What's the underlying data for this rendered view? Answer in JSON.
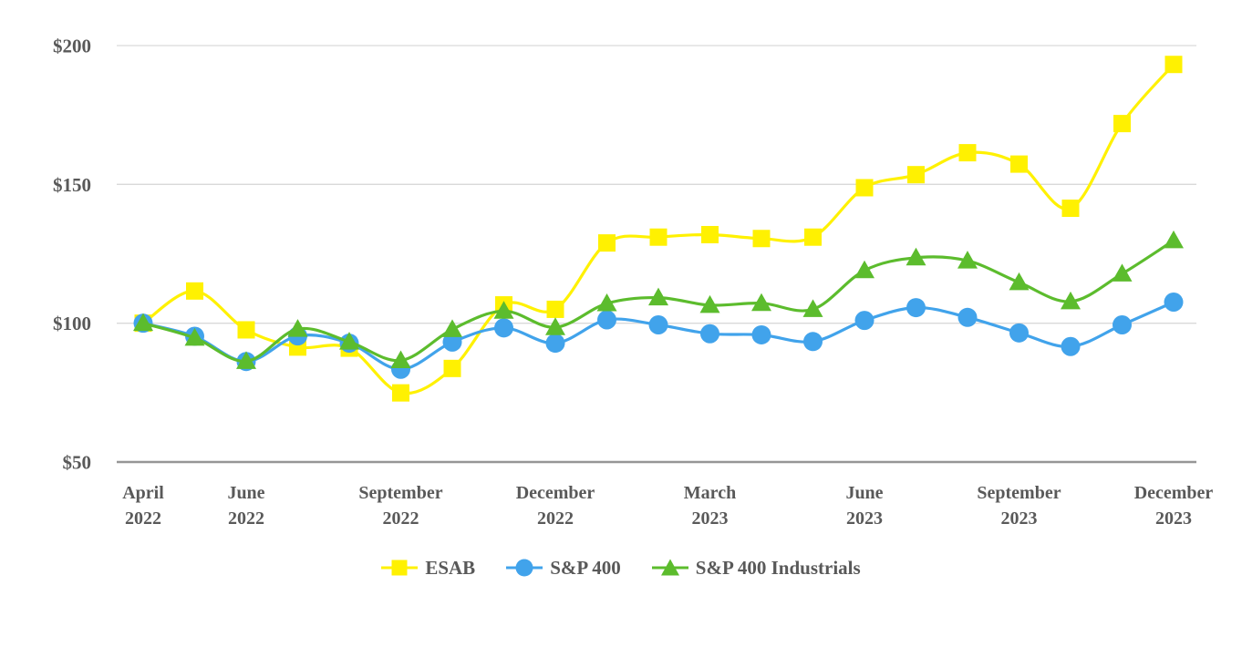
{
  "colors": {
    "background": "#FFFFFF",
    "text": "#595959",
    "gridline": "#D9D9D9",
    "axis_line": "#969696",
    "esab": "#FFF101",
    "sp400": "#41A3EB",
    "sp400_industrials": "#5CBC2D"
  },
  "chart_data": {
    "type": "line",
    "title": "",
    "xlabel": "",
    "ylabel": "",
    "ylim": [
      50,
      200
    ],
    "grid": "horizontal",
    "legend_position": "bottom",
    "line_style": "smooth",
    "x": [
      "April 2022",
      "May 2022",
      "June 2022",
      "July 2022",
      "August 2022",
      "September 2022",
      "October 2022",
      "November 2022",
      "December 2022",
      "January 2023",
      "February 2023",
      "March 2023",
      "April 2023",
      "May 2023",
      "June 2023",
      "July 2023",
      "August 2023",
      "September 2023",
      "October 2023",
      "November 2023",
      "December 2023"
    ],
    "y_ticks": [
      {
        "value": 200,
        "label": "$200"
      },
      {
        "value": 150,
        "label": "$150"
      },
      {
        "value": 100,
        "label": "$100"
      },
      {
        "value": 50,
        "label": "$50"
      }
    ],
    "x_ticks": [
      {
        "index": 0,
        "line1": "April",
        "line2": "2022"
      },
      {
        "index": 2,
        "line1": "June",
        "line2": "2022"
      },
      {
        "index": 5,
        "line1": "September",
        "line2": "2022"
      },
      {
        "index": 8,
        "line1": "December",
        "line2": "2022"
      },
      {
        "index": 11,
        "line1": "March",
        "line2": "2023"
      },
      {
        "index": 14,
        "line1": "June",
        "line2": "2023"
      },
      {
        "index": 17,
        "line1": "September",
        "line2": "2023"
      },
      {
        "index": 20,
        "line1": "December",
        "line2": "2023"
      }
    ],
    "series": [
      {
        "name": "ESAB",
        "marker": "square",
        "color": "#FFF101",
        "values": [
          100,
          111.6,
          97.6,
          91.4,
          91.0,
          74.9,
          83.7,
          106.6,
          105.0,
          128.9,
          131.0,
          131.9,
          130.5,
          131.0,
          148.8,
          153.5,
          161.4,
          157.3,
          141.4,
          171.9,
          193.2
        ]
      },
      {
        "name": "S&P 400",
        "marker": "circle",
        "color": "#41A3EB",
        "values": [
          100,
          95.3,
          86.2,
          95.4,
          92.8,
          83.4,
          93.2,
          98.3,
          92.8,
          101.2,
          99.4,
          96.2,
          95.8,
          93.4,
          101.0,
          105.6,
          102.1,
          96.5,
          91.6,
          99.4,
          107.6
        ]
      },
      {
        "name": "S&P 400 Industrials",
        "marker": "triangle",
        "color": "#5CBC2D",
        "values": [
          100,
          94.7,
          86.3,
          97.9,
          93.3,
          86.6,
          97.8,
          104.4,
          98.5,
          107.1,
          109.2,
          106.5,
          107.2,
          105.0,
          119.0,
          123.6,
          122.5,
          114.7,
          107.8,
          117.8,
          129.8
        ]
      }
    ]
  }
}
